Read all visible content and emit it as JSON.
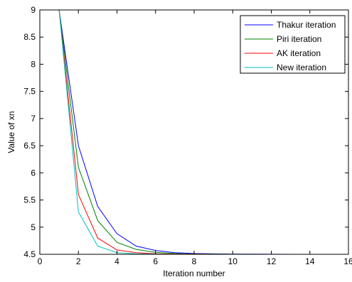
{
  "chart_data": {
    "type": "line",
    "title": "",
    "xlabel": "Iteration number",
    "ylabel": "Value of xn",
    "xlim": [
      0,
      16
    ],
    "ylim": [
      4.5,
      9
    ],
    "xticks": [
      0,
      2,
      4,
      6,
      8,
      10,
      12,
      14,
      16
    ],
    "xtick_labels": [
      "0",
      "2",
      "4",
      "6",
      "8",
      "10",
      "12",
      "14",
      "16"
    ],
    "yticks": [
      4.5,
      5,
      5.5,
      6,
      6.5,
      7,
      7.5,
      8,
      8.5,
      9
    ],
    "ytick_labels": [
      "4.5",
      "5",
      "5.5",
      "6",
      "6.5",
      "7",
      "7.5",
      "8",
      "8.5",
      "9"
    ],
    "grid": false,
    "legend_position": "top-right",
    "series": [
      {
        "name": "Thakur iteration",
        "color": "#0000ff",
        "x": [
          1,
          2,
          3,
          4,
          5,
          6,
          7,
          8,
          9,
          10,
          11,
          12,
          13,
          14,
          14.5
        ],
        "y": [
          9.0,
          6.5,
          5.38,
          4.88,
          4.65,
          4.57,
          4.53,
          4.515,
          4.508,
          4.504,
          4.502,
          4.501,
          4.5,
          4.5,
          4.5
        ]
      },
      {
        "name": "Piri iteration",
        "color": "#008000",
        "x": [
          1,
          2,
          3,
          4,
          5,
          6,
          7,
          8,
          9,
          10,
          11,
          12
        ],
        "y": [
          9.0,
          6.1,
          5.12,
          4.72,
          4.59,
          4.535,
          4.515,
          4.507,
          4.503,
          4.501,
          4.5,
          4.5
        ]
      },
      {
        "name": "AK iteration",
        "color": "#ff0000",
        "x": [
          1,
          2,
          3,
          4,
          5,
          6,
          7,
          8,
          9,
          10
        ],
        "y": [
          9.0,
          5.6,
          4.8,
          4.58,
          4.53,
          4.51,
          4.504,
          4.502,
          4.5,
          4.5
        ]
      },
      {
        "name": "New iteration",
        "color": "#00bfbf",
        "x": [
          1,
          2,
          3,
          4,
          5,
          6,
          7,
          8
        ],
        "y": [
          9.0,
          5.28,
          4.65,
          4.53,
          4.508,
          4.502,
          4.5,
          4.5
        ]
      }
    ]
  }
}
